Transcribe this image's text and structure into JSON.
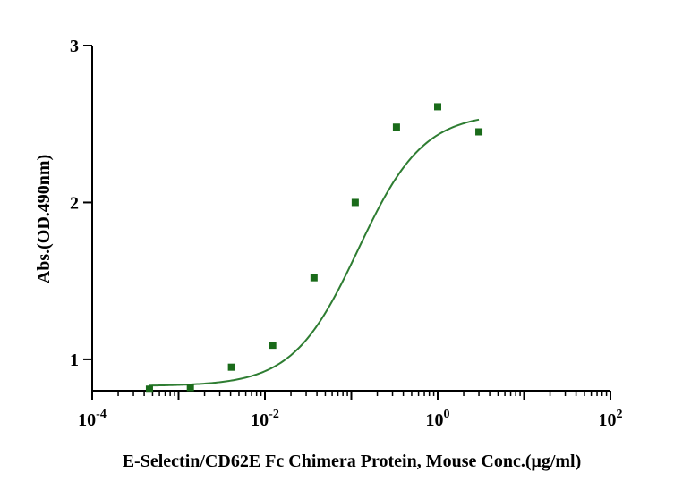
{
  "chart_data": {
    "type": "scatter",
    "title": "",
    "xlabel": "E-Selectin/CD62E Fc Chimera Protein, Mouse Conc.(μg/ml)",
    "ylabel": "Abs.(OD.490nm)",
    "x_scale": "log",
    "xlim": [
      0.0001,
      100
    ],
    "ylim": [
      0.8,
      3
    ],
    "x_ticks": [
      {
        "value": 0.0001,
        "base": "10",
        "exp": "-4"
      },
      {
        "value": 0.01,
        "base": "10",
        "exp": "-2"
      },
      {
        "value": 1,
        "base": "10",
        "exp": "0"
      },
      {
        "value": 100,
        "base": "10",
        "exp": "2"
      }
    ],
    "y_ticks": [
      {
        "value": 1,
        "label": "1"
      },
      {
        "value": 2,
        "label": "2"
      },
      {
        "value": 3,
        "label": "3"
      }
    ],
    "grid": false,
    "legend": "none",
    "series": [
      {
        "x": [
          0.00046,
          0.00137,
          0.0041,
          0.0123,
          0.037,
          0.111,
          0.333,
          1.0,
          3.0
        ],
        "y": [
          0.81,
          0.82,
          0.95,
          1.09,
          1.52,
          2.0,
          2.48,
          2.61,
          2.45
        ],
        "marker": "square",
        "color": "#1a6b1a"
      }
    ],
    "fit_curve": {
      "model": "4PL",
      "bottom": 0.83,
      "top": 2.57,
      "ec50": 0.12,
      "hill": 1.15,
      "x_range": [
        0.00046,
        3.0
      ],
      "color": "#2e7d32"
    },
    "axis_color": "#000000"
  }
}
